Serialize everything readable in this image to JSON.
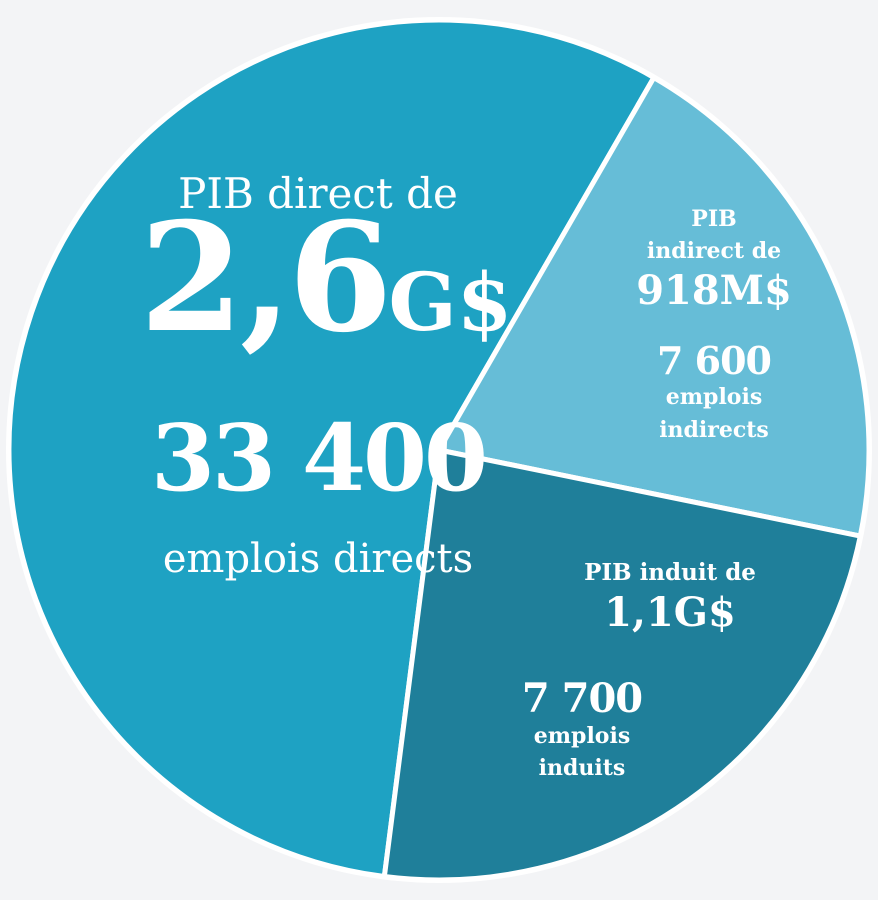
{
  "chart_data": {
    "type": "pie",
    "slices": [
      {
        "name_lines": [
          "PIB direct de"
        ],
        "value": 2600,
        "value_label": "2,6G$",
        "color": "#1ea2c3",
        "jobs_label": "33 400",
        "jobs_lines": [
          "emplois directs"
        ]
      },
      {
        "name_lines": [
          "PIB",
          "indirect de"
        ],
        "value": 918,
        "value_label": "918M$",
        "color": "#66bdd7",
        "jobs_label": "7 600",
        "jobs_lines": [
          "emplois",
          "indirects"
        ]
      },
      {
        "name_lines": [
          "PIB induit de"
        ],
        "value": 1100,
        "value_label": "1,1G$",
        "color": "#1f7f9a",
        "jobs_label": "7 700",
        "jobs_lines": [
          "emplois",
          "induits"
        ]
      }
    ]
  }
}
